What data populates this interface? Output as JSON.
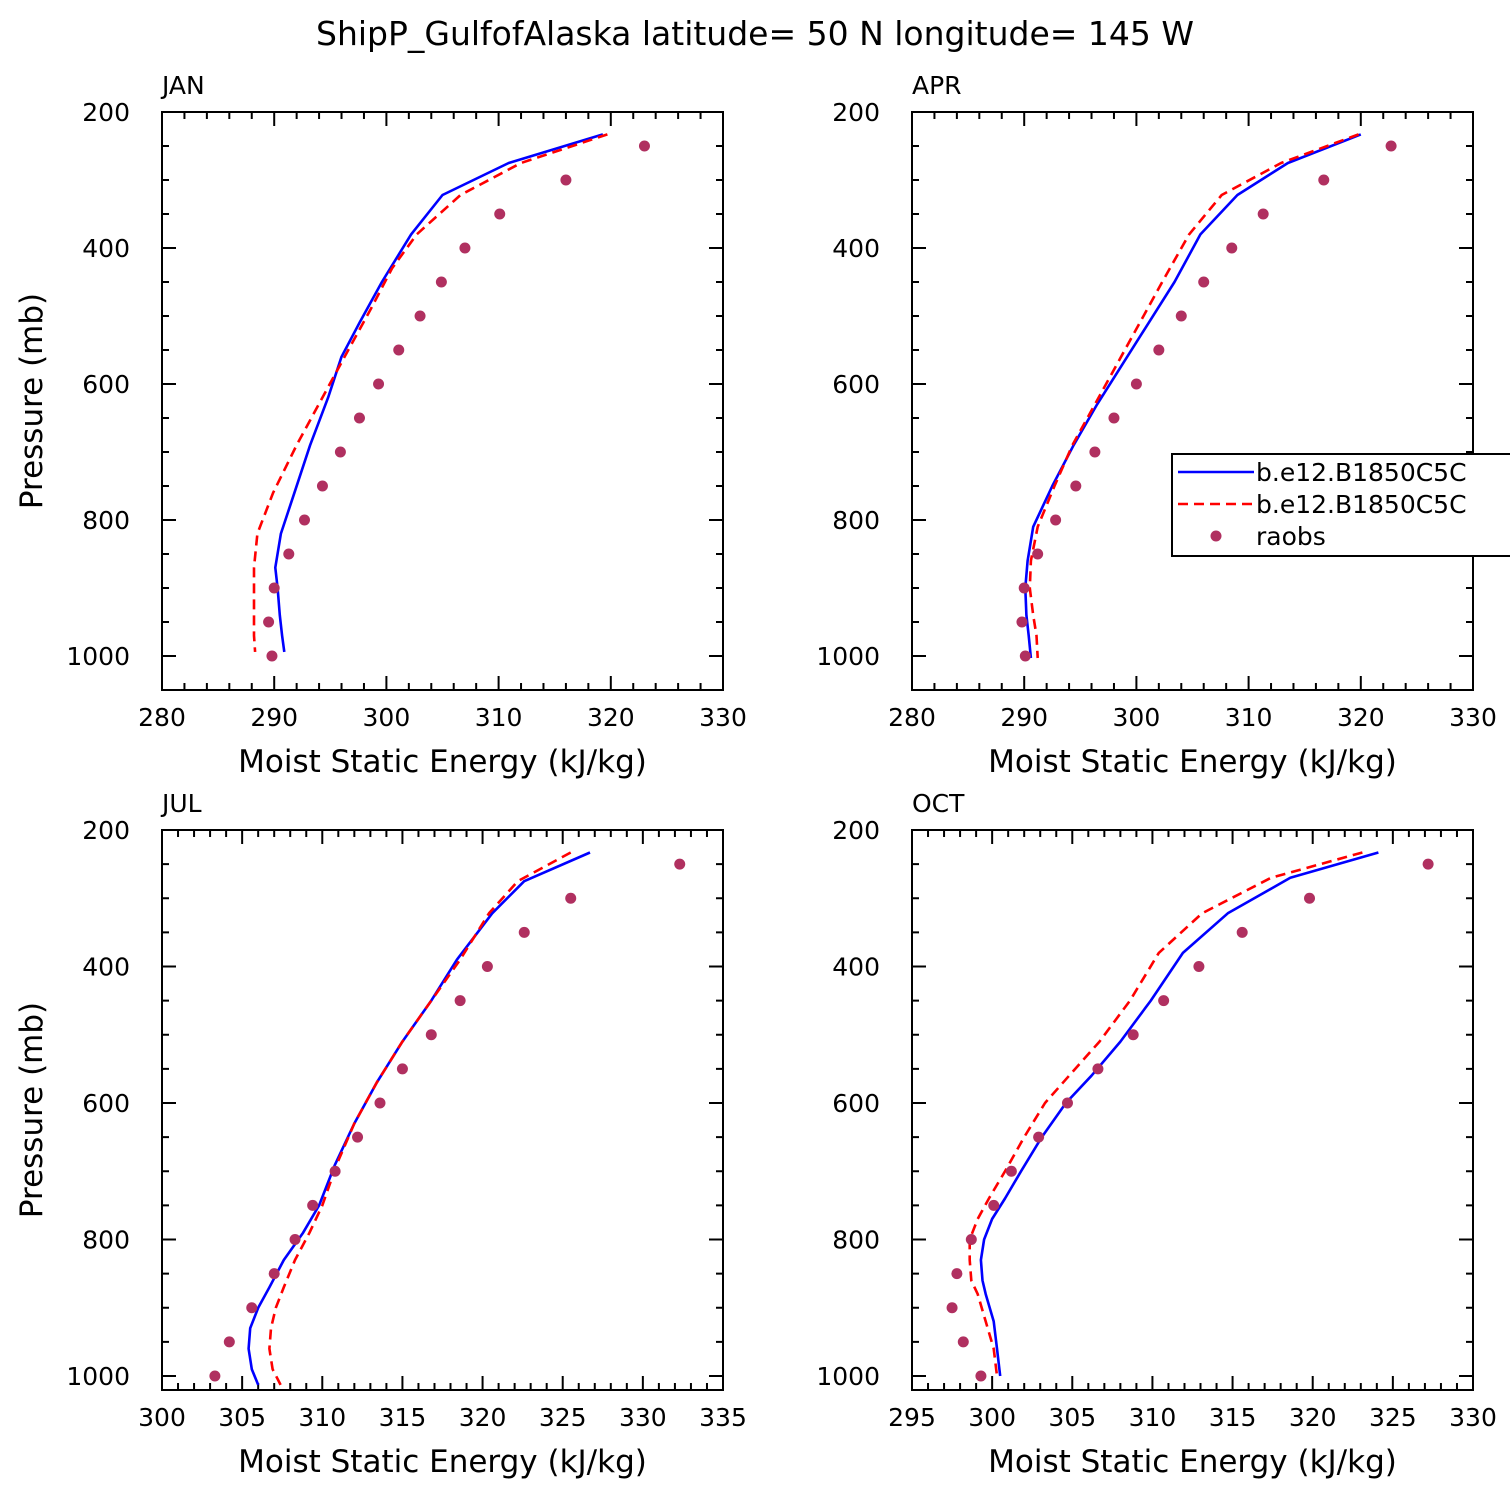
{
  "title": "ShipP_GulfofAlaska  latitude= 50 N longitude= 145 W",
  "colors": {
    "model1": "#0000ff",
    "model2": "#ff0000",
    "obs": "#b03060"
  },
  "chart_data": [
    {
      "type": "line",
      "panel_label": "JAN",
      "xlabel": "Moist Static Energy (kJ/kg)",
      "ylabel": "Pressure (mb)",
      "xlim": [
        280,
        330
      ],
      "ylim": [
        1025,
        200
      ],
      "y_inverted": true,
      "x_ticks": [
        280,
        290,
        300,
        310,
        320,
        330
      ],
      "y_ticks": [
        200,
        400,
        600,
        800,
        1000
      ],
      "series": [
        {
          "style": "solid",
          "color": "#0000ff",
          "x": [
            319.3,
            310.9,
            305.0,
            302.2,
            299.6,
            297.6,
            296.0,
            294.8,
            293.2,
            291.8,
            290.6,
            290.1,
            290.3,
            290.5,
            290.7,
            290.9
          ],
          "y": [
            233,
            275,
            322,
            380,
            450,
            510,
            560,
            620,
            690,
            760,
            820,
            870,
            900,
            940,
            970,
            994
          ]
        },
        {
          "style": "dashed",
          "color": "#ff0000",
          "x": [
            319.7,
            312.0,
            306.6,
            302.7,
            300.5,
            298.6,
            296.6,
            294.3,
            292.0,
            289.9,
            288.5,
            288.2,
            288.2,
            288.2,
            288.2,
            288.3
          ],
          "y": [
            233,
            275,
            322,
            380,
            430,
            490,
            550,
            620,
            690,
            760,
            820,
            870,
            900,
            940,
            970,
            994
          ]
        },
        {
          "style": "marker",
          "name": "raobs",
          "color": "#b03060",
          "x": [
            323.0,
            316.0,
            310.1,
            307.0,
            304.9,
            303.0,
            301.1,
            299.3,
            297.6,
            295.9,
            294.3,
            292.7,
            291.3,
            290.0,
            289.5,
            289.8
          ],
          "y": [
            250,
            300,
            350,
            400,
            450,
            500,
            550,
            600,
            650,
            700,
            750,
            800,
            850,
            900,
            950,
            1000
          ]
        }
      ]
    },
    {
      "type": "line",
      "panel_label": "APR",
      "xlabel": "Moist Static Energy (kJ/kg)",
      "ylabel": "",
      "xlim": [
        280,
        330
      ],
      "ylim": [
        1025,
        200
      ],
      "y_inverted": true,
      "x_ticks": [
        280,
        290,
        300,
        310,
        320,
        330
      ],
      "y_ticks": [
        200,
        400,
        600,
        800,
        1000
      ],
      "series": [
        {
          "name": "b.e12.B1850C5C",
          "style": "solid",
          "color": "#0000ff",
          "x": [
            320.0,
            313.5,
            309.0,
            305.7,
            303.4,
            301.1,
            298.8,
            296.5,
            294.4,
            292.5,
            290.8,
            290.3,
            290.1,
            290.2,
            290.4,
            290.6
          ],
          "y": [
            233,
            275,
            322,
            380,
            450,
            510,
            570,
            630,
            690,
            750,
            810,
            860,
            900,
            940,
            970,
            1003
          ]
        },
        {
          "name": "b.e12.B1850C5C",
          "style": "dashed",
          "color": "#ff0000",
          "x": [
            319.8,
            312.9,
            307.6,
            304.7,
            302.3,
            300.3,
            298.3,
            296.3,
            294.3,
            292.7,
            291.2,
            290.6,
            290.5,
            290.8,
            291.1,
            291.2
          ],
          "y": [
            233,
            275,
            322,
            380,
            450,
            510,
            570,
            630,
            690,
            750,
            810,
            860,
            900,
            940,
            970,
            1003
          ]
        },
        {
          "name": "raobs",
          "style": "marker",
          "color": "#b03060",
          "x": [
            322.7,
            316.7,
            311.3,
            308.5,
            306.0,
            304.0,
            302.0,
            300.0,
            298.0,
            296.3,
            294.6,
            292.8,
            291.2,
            290.0,
            289.8,
            290.1
          ],
          "y": [
            250,
            300,
            350,
            400,
            450,
            500,
            550,
            600,
            650,
            700,
            750,
            800,
            850,
            900,
            950,
            1000
          ]
        }
      ]
    },
    {
      "type": "line",
      "panel_label": "JUL",
      "xlabel": "Moist Static Energy (kJ/kg)",
      "ylabel": "Pressure (mb)",
      "xlim": [
        300,
        335
      ],
      "ylim": [
        1025,
        200
      ],
      "y_inverted": true,
      "x_ticks": [
        300,
        305,
        310,
        315,
        320,
        325,
        330,
        335
      ],
      "y_ticks": [
        200,
        400,
        600,
        800,
        1000
      ],
      "series": [
        {
          "style": "solid",
          "color": "#0000ff",
          "x": [
            326.7,
            322.6,
            320.6,
            318.4,
            316.8,
            315.0,
            313.4,
            312.0,
            310.8,
            309.8,
            308.8,
            307.6,
            306.7,
            306.0,
            305.5,
            305.4,
            305.6,
            306.0
          ],
          "y": [
            233,
            275,
            322,
            390,
            450,
            510,
            570,
            630,
            690,
            750,
            790,
            830,
            870,
            900,
            930,
            960,
            990,
            1013
          ]
        },
        {
          "style": "dashed",
          "color": "#ff0000",
          "x": [
            325.5,
            322.2,
            320.4,
            318.6,
            316.8,
            315.0,
            313.4,
            312.0,
            310.9,
            310.0,
            309.2,
            308.3,
            307.6,
            307.1,
            306.8,
            306.7,
            306.9,
            307.4
          ],
          "y": [
            233,
            275,
            322,
            390,
            450,
            510,
            570,
            630,
            690,
            750,
            790,
            830,
            870,
            900,
            930,
            960,
            990,
            1013
          ]
        },
        {
          "style": "marker",
          "color": "#b03060",
          "x": [
            332.3,
            325.5,
            322.6,
            320.3,
            318.6,
            316.8,
            315.0,
            313.6,
            312.2,
            310.8,
            309.4,
            308.3,
            307.0,
            305.6,
            304.2,
            303.3
          ],
          "y": [
            250,
            300,
            350,
            400,
            450,
            500,
            550,
            600,
            650,
            700,
            750,
            800,
            850,
            900,
            950,
            1000
          ]
        }
      ]
    },
    {
      "type": "line",
      "panel_label": "OCT",
      "xlabel": "Moist Static Energy (kJ/kg)",
      "ylabel": "",
      "xlim": [
        295,
        330
      ],
      "ylim": [
        1025,
        200
      ],
      "y_inverted": true,
      "x_ticks": [
        295,
        300,
        305,
        310,
        315,
        320,
        325,
        330
      ],
      "y_ticks": [
        200,
        400,
        600,
        800,
        1000
      ],
      "series": [
        {
          "style": "solid",
          "color": "#0000ff",
          "x": [
            324.1,
            318.6,
            314.7,
            311.9,
            309.9,
            308.0,
            306.2,
            304.6,
            303.1,
            301.8,
            300.8,
            300.0,
            299.5,
            299.3,
            299.4,
            299.6,
            300.1,
            300.3,
            300.5
          ],
          "y": [
            233,
            270,
            322,
            380,
            450,
            510,
            560,
            600,
            650,
            700,
            740,
            770,
            800,
            830,
            860,
            880,
            920,
            960,
            1000
          ]
        },
        {
          "style": "dashed",
          "color": "#ff0000",
          "x": [
            323.1,
            317.4,
            313.1,
            310.4,
            308.6,
            306.7,
            304.8,
            303.3,
            302.0,
            300.8,
            299.8,
            299.1,
            298.6,
            298.6,
            298.7,
            299.1,
            299.6,
            300.1,
            300.3
          ],
          "y": [
            233,
            270,
            322,
            380,
            450,
            510,
            560,
            600,
            650,
            700,
            740,
            770,
            800,
            830,
            860,
            880,
            920,
            960,
            1000
          ]
        },
        {
          "style": "marker",
          "color": "#b03060",
          "x": [
            327.2,
            319.8,
            315.6,
            312.9,
            310.7,
            308.8,
            306.6,
            304.7,
            302.9,
            301.2,
            300.1,
            298.7,
            297.8,
            297.5,
            298.2,
            299.3
          ],
          "y": [
            250,
            300,
            350,
            400,
            450,
            500,
            550,
            600,
            650,
            700,
            750,
            800,
            850,
            900,
            950,
            1000
          ]
        }
      ]
    }
  ],
  "legend": {
    "entries": [
      "b.e12.B1850C5C",
      "b.e12.B1850C5C",
      "raobs"
    ]
  }
}
